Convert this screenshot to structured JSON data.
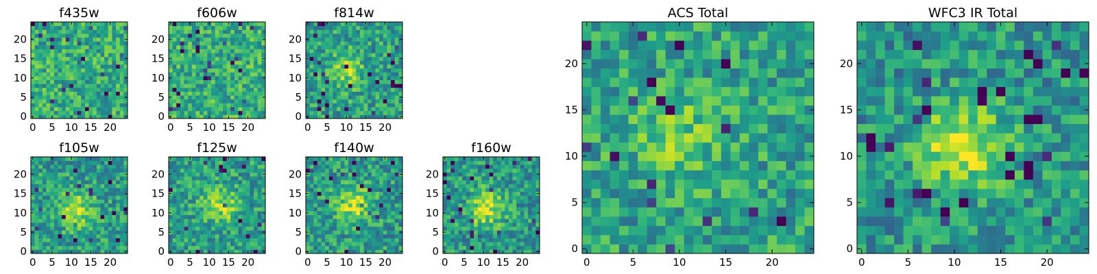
{
  "chart_data": [
    {
      "type": "heatmap",
      "title": "f435w",
      "xlim": [
        0,
        24
      ],
      "ylim": [
        0,
        24
      ],
      "xticks": [
        "0",
        "5",
        "10",
        "15",
        "20"
      ],
      "yticks": [
        "0",
        "5",
        "10",
        "15",
        "20"
      ],
      "colormap": "viridis",
      "source_peak": [
        12,
        12
      ],
      "source_strength": 0.0
    },
    {
      "type": "heatmap",
      "title": "f606w",
      "xlim": [
        0,
        24
      ],
      "ylim": [
        0,
        24
      ],
      "xticks": [
        "0",
        "5",
        "10",
        "15",
        "20"
      ],
      "yticks": [
        "0",
        "5",
        "10",
        "15",
        "20"
      ],
      "colormap": "viridis",
      "source_peak": [
        12,
        12
      ],
      "source_strength": 0.0
    },
    {
      "type": "heatmap",
      "title": "f814w",
      "xlim": [
        0,
        24
      ],
      "ylim": [
        0,
        24
      ],
      "xticks": [
        "0",
        "5",
        "10",
        "15",
        "20"
      ],
      "yticks": [
        "0",
        "5",
        "10",
        "15",
        "20"
      ],
      "colormap": "viridis",
      "source_peak": [
        10,
        12
      ],
      "source_strength": 0.45
    },
    {
      "type": "heatmap",
      "title": "f105w",
      "xlim": [
        0,
        24
      ],
      "ylim": [
        0,
        24
      ],
      "xticks": [
        "0",
        "5",
        "10",
        "15",
        "20"
      ],
      "yticks": [
        "0",
        "5",
        "10",
        "15",
        "20"
      ],
      "colormap": "viridis",
      "source_peak": [
        11,
        11
      ],
      "source_strength": 0.55
    },
    {
      "type": "heatmap",
      "title": "f125w",
      "xlim": [
        0,
        24
      ],
      "ylim": [
        0,
        24
      ],
      "xticks": [
        "0",
        "5",
        "10",
        "15",
        "20"
      ],
      "yticks": [
        "0",
        "5",
        "10",
        "15",
        "20"
      ],
      "colormap": "viridis",
      "source_peak": [
        13,
        12
      ],
      "source_strength": 0.55
    },
    {
      "type": "heatmap",
      "title": "f140w",
      "xlim": [
        0,
        24
      ],
      "ylim": [
        0,
        24
      ],
      "xticks": [
        "0",
        "5",
        "10",
        "15",
        "20"
      ],
      "yticks": [
        "0",
        "5",
        "10",
        "15",
        "20"
      ],
      "colormap": "viridis",
      "source_peak": [
        12,
        12
      ],
      "source_strength": 0.6
    },
    {
      "type": "heatmap",
      "title": "f160w",
      "xlim": [
        0,
        24
      ],
      "ylim": [
        0,
        24
      ],
      "xticks": [
        "0",
        "5",
        "10",
        "15",
        "20"
      ],
      "yticks": [
        "0",
        "5",
        "10",
        "15",
        "20"
      ],
      "colormap": "viridis",
      "source_peak": [
        11,
        11
      ],
      "source_strength": 0.7
    },
    {
      "type": "heatmap",
      "title": "ACS Total",
      "xlim": [
        0,
        24
      ],
      "ylim": [
        0,
        24
      ],
      "xticks": [
        "0",
        "5",
        "10",
        "15",
        "20"
      ],
      "yticks": [
        "0",
        "5",
        "10",
        "15",
        "20"
      ],
      "colormap": "viridis",
      "source_peak": [
        10,
        12
      ],
      "source_strength": 0.35
    },
    {
      "type": "heatmap",
      "title": "WFC3 IR Total",
      "xlim": [
        0,
        24
      ],
      "ylim": [
        0,
        24
      ],
      "xticks": [
        "0",
        "5",
        "10",
        "15",
        "20"
      ],
      "yticks": [
        "0",
        "5",
        "10",
        "15",
        "20"
      ],
      "colormap": "viridis",
      "source_peak": [
        11,
        11
      ],
      "source_strength": 0.8
    }
  ]
}
